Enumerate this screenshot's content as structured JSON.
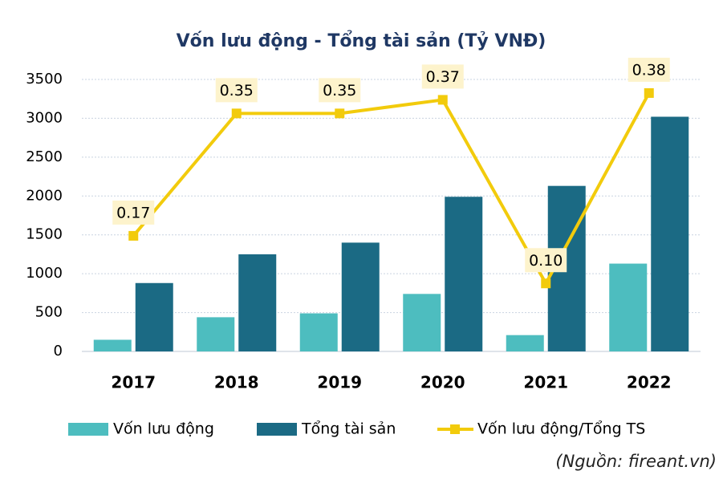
{
  "chart_data": {
    "type": "bar-line",
    "title": "Vốn lưu động - Tổng tài sản (Tỷ VNĐ)",
    "source": "(Nguồn: fireant.vn)",
    "categories": [
      "2017",
      "2018",
      "2019",
      "2020",
      "2021",
      "2022"
    ],
    "series": [
      {
        "name": "Vốn lưu động",
        "type": "bar",
        "color": "#4dbdbf",
        "values": [
          150,
          440,
          490,
          740,
          210,
          1130
        ]
      },
      {
        "name": "Tổng tài sản",
        "type": "bar",
        "color": "#1b6a84",
        "values": [
          880,
          1250,
          1400,
          1990,
          2130,
          3020
        ]
      },
      {
        "name": "Vốn lưu động/Tổng TS",
        "type": "line",
        "axis": "y2",
        "color": "#f2cb0c",
        "values": [
          0.17,
          0.35,
          0.35,
          0.37,
          0.1,
          0.38
        ],
        "value_labels": [
          "0.17",
          "0.35",
          "0.35",
          "0.37",
          "0.10",
          "0.38"
        ]
      }
    ],
    "ylim": [
      0,
      3500
    ],
    "yticks": [
      0,
      500,
      1000,
      1500,
      2000,
      2500,
      3000,
      3500
    ],
    "y2lim": [
      0,
      0.4
    ],
    "grid": true,
    "legend": "bottom"
  }
}
